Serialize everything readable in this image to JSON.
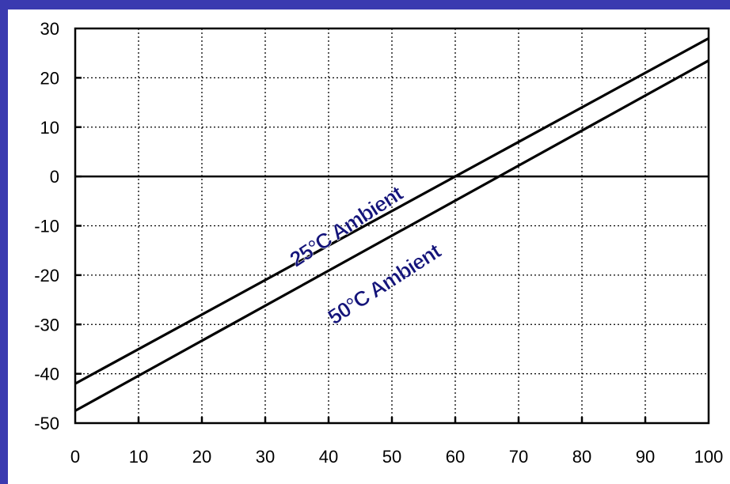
{
  "chart_data": {
    "type": "line",
    "title": "",
    "xlabel": "",
    "ylabel": "",
    "xlim": [
      0,
      100
    ],
    "ylim": [
      -50,
      30
    ],
    "x_ticks": [
      "0",
      "10",
      "20",
      "30",
      "40",
      "50",
      "60",
      "70",
      "80",
      "90",
      "100"
    ],
    "y_ticks": [
      "30",
      "20",
      "10",
      "0",
      "-10",
      "-20",
      "-30",
      "-40",
      "-50"
    ],
    "grid": true,
    "series": [
      {
        "name": "25°C Ambient",
        "x": [
          0,
          100
        ],
        "y": [
          -42,
          28
        ]
      },
      {
        "name": "50°C Ambient",
        "x": [
          0,
          100
        ],
        "y": [
          -47.5,
          23.5
        ]
      }
    ],
    "annotations": [
      "25°C Ambient",
      "50°C Ambient"
    ],
    "colors": {
      "background": "#3a3ab0",
      "line": "#000000",
      "annotation": "#14147a"
    }
  }
}
